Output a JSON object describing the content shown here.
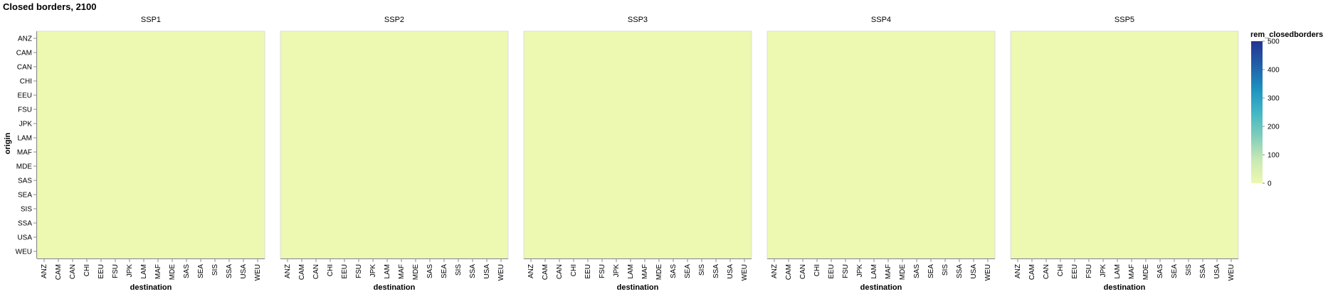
{
  "chart_data": {
    "type": "heatmap",
    "title": "Closed borders, 2100",
    "facets": [
      "SSP1",
      "SSP2",
      "SSP3",
      "SSP4",
      "SSP5"
    ],
    "x_label": "destination",
    "y_label": "origin",
    "x_categories": [
      "ANZ",
      "CAM",
      "CAN",
      "CHI",
      "EEU",
      "FSU",
      "JPK",
      "LAM",
      "MAF",
      "MDE",
      "SAS",
      "SEA",
      "SIS",
      "SSA",
      "USA",
      "WEU"
    ],
    "y_categories": [
      "ANZ",
      "CAM",
      "CAN",
      "CHI",
      "EEU",
      "FSU",
      "JPK",
      "LAM",
      "MAF",
      "MDE",
      "SAS",
      "SEA",
      "SIS",
      "SSA",
      "USA",
      "WEU"
    ],
    "cell_value_all": 0,
    "legend": {
      "title": "rem_closedborders",
      "ticks": [
        "500",
        "400",
        "300",
        "200",
        "100",
        "0"
      ],
      "domain": [
        0,
        500
      ],
      "scheme": "yellowgreenblue",
      "colors": [
        "#edf8b1",
        "#c7e9b4",
        "#7fcdbb",
        "#41b6c4",
        "#1d91c0",
        "#225ea8",
        "#253494"
      ]
    }
  }
}
